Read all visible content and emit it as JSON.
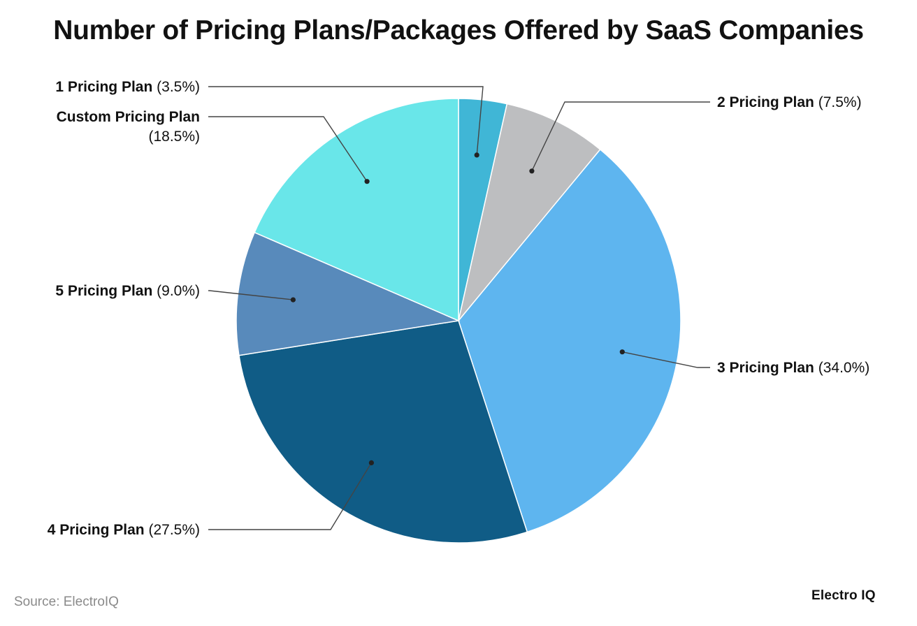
{
  "chart_data": {
    "type": "pie",
    "title": "Number of Pricing Plans/Packages Offered by SaaS Companies",
    "unit": "%",
    "slices": [
      {
        "label": "1 Pricing Plan",
        "value": 3.5,
        "value_label": "(3.5%)",
        "color": "#40B6D6"
      },
      {
        "label": "2 Pricing Plan",
        "value": 7.5,
        "value_label": "(7.5%)",
        "color": "#BDBEC0"
      },
      {
        "label": "3 Pricing Plan",
        "value": 34.0,
        "value_label": "(34.0%)",
        "color": "#5EB5EF"
      },
      {
        "label": "4 Pricing Plan",
        "value": 27.5,
        "value_label": "(27.5%)",
        "color": "#105C86"
      },
      {
        "label": "5 Pricing Plan",
        "value": 9.0,
        "value_label": "(9.0%)",
        "color": "#588ABB"
      },
      {
        "label": "Custom Pricing Plan",
        "value": 18.5,
        "value_label": "(18.5%)",
        "color": "#69E6E9"
      }
    ],
    "legend": "none"
  },
  "footer": {
    "source": "Source: ElectroIQ",
    "brand": "Electro IQ"
  }
}
